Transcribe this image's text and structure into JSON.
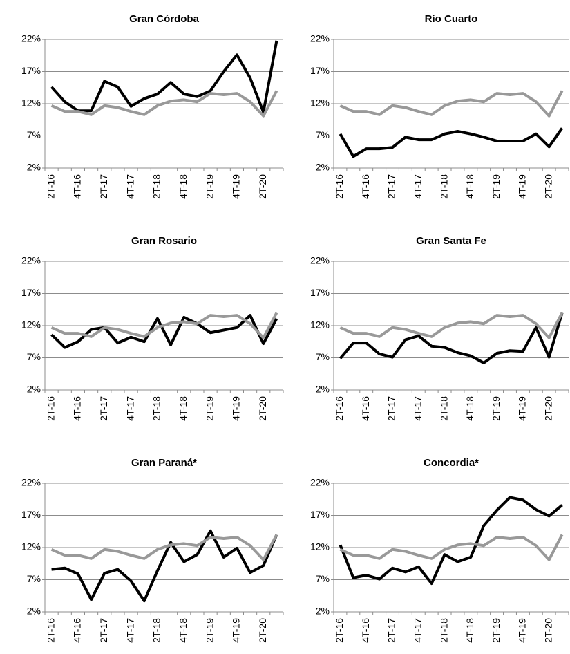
{
  "chart_data": [
    {
      "type": "line",
      "title": "Gran Córdoba",
      "categories": [
        "2T-16",
        null,
        "4T-16",
        null,
        "2T-17",
        null,
        "4T-17",
        null,
        "2T-18",
        null,
        "4T-18",
        null,
        "2T-19",
        null,
        "4T-19",
        null,
        "2T-20",
        null
      ],
      "series": [
        {
          "color": "#000000",
          "values": [
            14.6,
            12.3,
            10.9,
            10.9,
            15.5,
            14.6,
            11.6,
            12.8,
            13.5,
            15.3,
            13.5,
            13.1,
            14.0,
            17.0,
            19.6,
            16.0,
            10.7,
            21.8
          ]
        },
        {
          "color": "#999999",
          "values": [
            11.7,
            10.8,
            10.8,
            10.3,
            11.7,
            11.4,
            10.8,
            10.3,
            11.7,
            12.4,
            12.6,
            12.3,
            13.6,
            13.4,
            13.6,
            12.3,
            10.1,
            14.0
          ]
        }
      ],
      "ylim": [
        2,
        22
      ],
      "yticks": [
        {
          "value": 2,
          "label": "2%"
        },
        {
          "value": 7,
          "label": "7%"
        },
        {
          "value": 12,
          "label": "12%"
        },
        {
          "value": 17,
          "label": "17%"
        },
        {
          "value": 22,
          "label": "22%"
        }
      ],
      "grid": true
    },
    {
      "type": "line",
      "title": "Río Cuarto",
      "categories": [
        "2T-16",
        null,
        "4T-16",
        null,
        "2T-17",
        null,
        "4T-17",
        null,
        "2T-18",
        null,
        "4T-18",
        null,
        "2T-19",
        null,
        "4T-19",
        null,
        "2T-20",
        null
      ],
      "series": [
        {
          "color": "#000000",
          "values": [
            7.3,
            3.8,
            5.0,
            5.0,
            5.2,
            6.8,
            6.4,
            6.4,
            7.3,
            7.7,
            7.3,
            6.8,
            6.2,
            6.2,
            6.2,
            7.3,
            5.3,
            8.2
          ]
        },
        {
          "color": "#999999",
          "values": [
            11.7,
            10.8,
            10.8,
            10.3,
            11.7,
            11.4,
            10.8,
            10.3,
            11.7,
            12.4,
            12.6,
            12.3,
            13.6,
            13.4,
            13.6,
            12.3,
            10.1,
            14.0
          ]
        }
      ],
      "ylim": [
        2,
        22
      ],
      "yticks": [
        {
          "value": 2,
          "label": "2%"
        },
        {
          "value": 7,
          "label": "7%"
        },
        {
          "value": 12,
          "label": "12%"
        },
        {
          "value": 17,
          "label": "17%"
        },
        {
          "value": 22,
          "label": "22%"
        }
      ],
      "grid": true
    },
    {
      "type": "line",
      "title": "Gran Rosario",
      "categories": [
        "2T-16",
        null,
        "4T-16",
        null,
        "2T-17",
        null,
        "4T-17",
        null,
        "2T-18",
        null,
        "4T-18",
        null,
        "2T-19",
        null,
        "4T-19",
        null,
        "2T-20",
        null
      ],
      "series": [
        {
          "color": "#000000",
          "values": [
            10.6,
            8.6,
            9.5,
            11.4,
            11.7,
            9.3,
            10.2,
            9.5,
            13.1,
            9.0,
            13.3,
            12.3,
            10.9,
            11.3,
            11.7,
            13.6,
            9.2,
            13.1
          ]
        },
        {
          "color": "#999999",
          "values": [
            11.7,
            10.8,
            10.8,
            10.3,
            11.7,
            11.4,
            10.8,
            10.3,
            11.7,
            12.4,
            12.6,
            12.3,
            13.6,
            13.4,
            13.6,
            12.3,
            10.1,
            14.0
          ]
        }
      ],
      "ylim": [
        2,
        22
      ],
      "yticks": [
        {
          "value": 2,
          "label": "2%"
        },
        {
          "value": 7,
          "label": "7%"
        },
        {
          "value": 12,
          "label": "12%"
        },
        {
          "value": 17,
          "label": "17%"
        },
        {
          "value": 22,
          "label": "22%"
        }
      ],
      "grid": true
    },
    {
      "type": "line",
      "title": "Gran Santa Fe",
      "categories": [
        "2T-16",
        null,
        "4T-16",
        null,
        "2T-17",
        null,
        "4T-17",
        null,
        "2T-18",
        null,
        "4T-18",
        null,
        "2T-19",
        null,
        "4T-19",
        null,
        "2T-20",
        null
      ],
      "series": [
        {
          "color": "#000000",
          "values": [
            6.9,
            9.3,
            9.3,
            7.6,
            7.1,
            9.8,
            10.4,
            8.8,
            8.6,
            7.8,
            7.3,
            6.2,
            7.7,
            8.1,
            8.0,
            11.7,
            7.1,
            14.0
          ]
        },
        {
          "color": "#999999",
          "values": [
            11.7,
            10.8,
            10.8,
            10.3,
            11.7,
            11.4,
            10.8,
            10.3,
            11.7,
            12.4,
            12.6,
            12.3,
            13.6,
            13.4,
            13.6,
            12.3,
            10.1,
            14.0
          ]
        }
      ],
      "ylim": [
        2,
        22
      ],
      "yticks": [
        {
          "value": 2,
          "label": "2%"
        },
        {
          "value": 7,
          "label": "7%"
        },
        {
          "value": 12,
          "label": "12%"
        },
        {
          "value": 17,
          "label": "17%"
        },
        {
          "value": 22,
          "label": "22%"
        }
      ],
      "grid": true
    },
    {
      "type": "line",
      "title": "Gran Paraná*",
      "categories": [
        "2T-16",
        null,
        "4T-16",
        null,
        "2T-17",
        null,
        "4T-17",
        null,
        "2T-18",
        null,
        "4T-18",
        null,
        "2T-19",
        null,
        "4T-19",
        null,
        "2T-20",
        null
      ],
      "series": [
        {
          "color": "#000000",
          "values": [
            8.6,
            8.8,
            7.9,
            3.9,
            8.0,
            8.6,
            6.8,
            3.7,
            8.4,
            12.8,
            9.8,
            10.9,
            14.6,
            10.5,
            11.9,
            8.1,
            9.2,
            14.0
          ]
        },
        {
          "color": "#999999",
          "values": [
            11.7,
            10.8,
            10.8,
            10.3,
            11.7,
            11.4,
            10.8,
            10.3,
            11.7,
            12.4,
            12.6,
            12.3,
            13.6,
            13.4,
            13.6,
            12.3,
            10.1,
            14.0
          ]
        }
      ],
      "ylim": [
        2,
        22
      ],
      "yticks": [
        {
          "value": 2,
          "label": "2%"
        },
        {
          "value": 7,
          "label": "7%"
        },
        {
          "value": 12,
          "label": "12%"
        },
        {
          "value": 17,
          "label": "17%"
        },
        {
          "value": 22,
          "label": "22%"
        }
      ],
      "grid": true
    },
    {
      "type": "line",
      "title": "Concordia*",
      "categories": [
        "2T-16",
        null,
        "4T-16",
        null,
        "2T-17",
        null,
        "4T-17",
        null,
        "2T-18",
        null,
        "4T-18",
        null,
        "2T-19",
        null,
        "4T-19",
        null,
        "2T-20",
        null
      ],
      "series": [
        {
          "color": "#000000",
          "values": [
            12.4,
            7.3,
            7.7,
            7.1,
            8.8,
            8.2,
            9.0,
            6.4,
            10.9,
            9.8,
            10.5,
            15.4,
            17.8,
            19.8,
            19.4,
            17.9,
            16.9,
            18.6
          ]
        },
        {
          "color": "#999999",
          "values": [
            11.7,
            10.8,
            10.8,
            10.3,
            11.7,
            11.4,
            10.8,
            10.3,
            11.7,
            12.4,
            12.6,
            12.3,
            13.6,
            13.4,
            13.6,
            12.3,
            10.1,
            14.0
          ]
        }
      ],
      "ylim": [
        2,
        22
      ],
      "yticks": [
        {
          "value": 2,
          "label": "2%"
        },
        {
          "value": 7,
          "label": "7%"
        },
        {
          "value": 12,
          "label": "12%"
        },
        {
          "value": 17,
          "label": "17%"
        },
        {
          "value": 22,
          "label": "22%"
        }
      ],
      "grid": true
    }
  ]
}
